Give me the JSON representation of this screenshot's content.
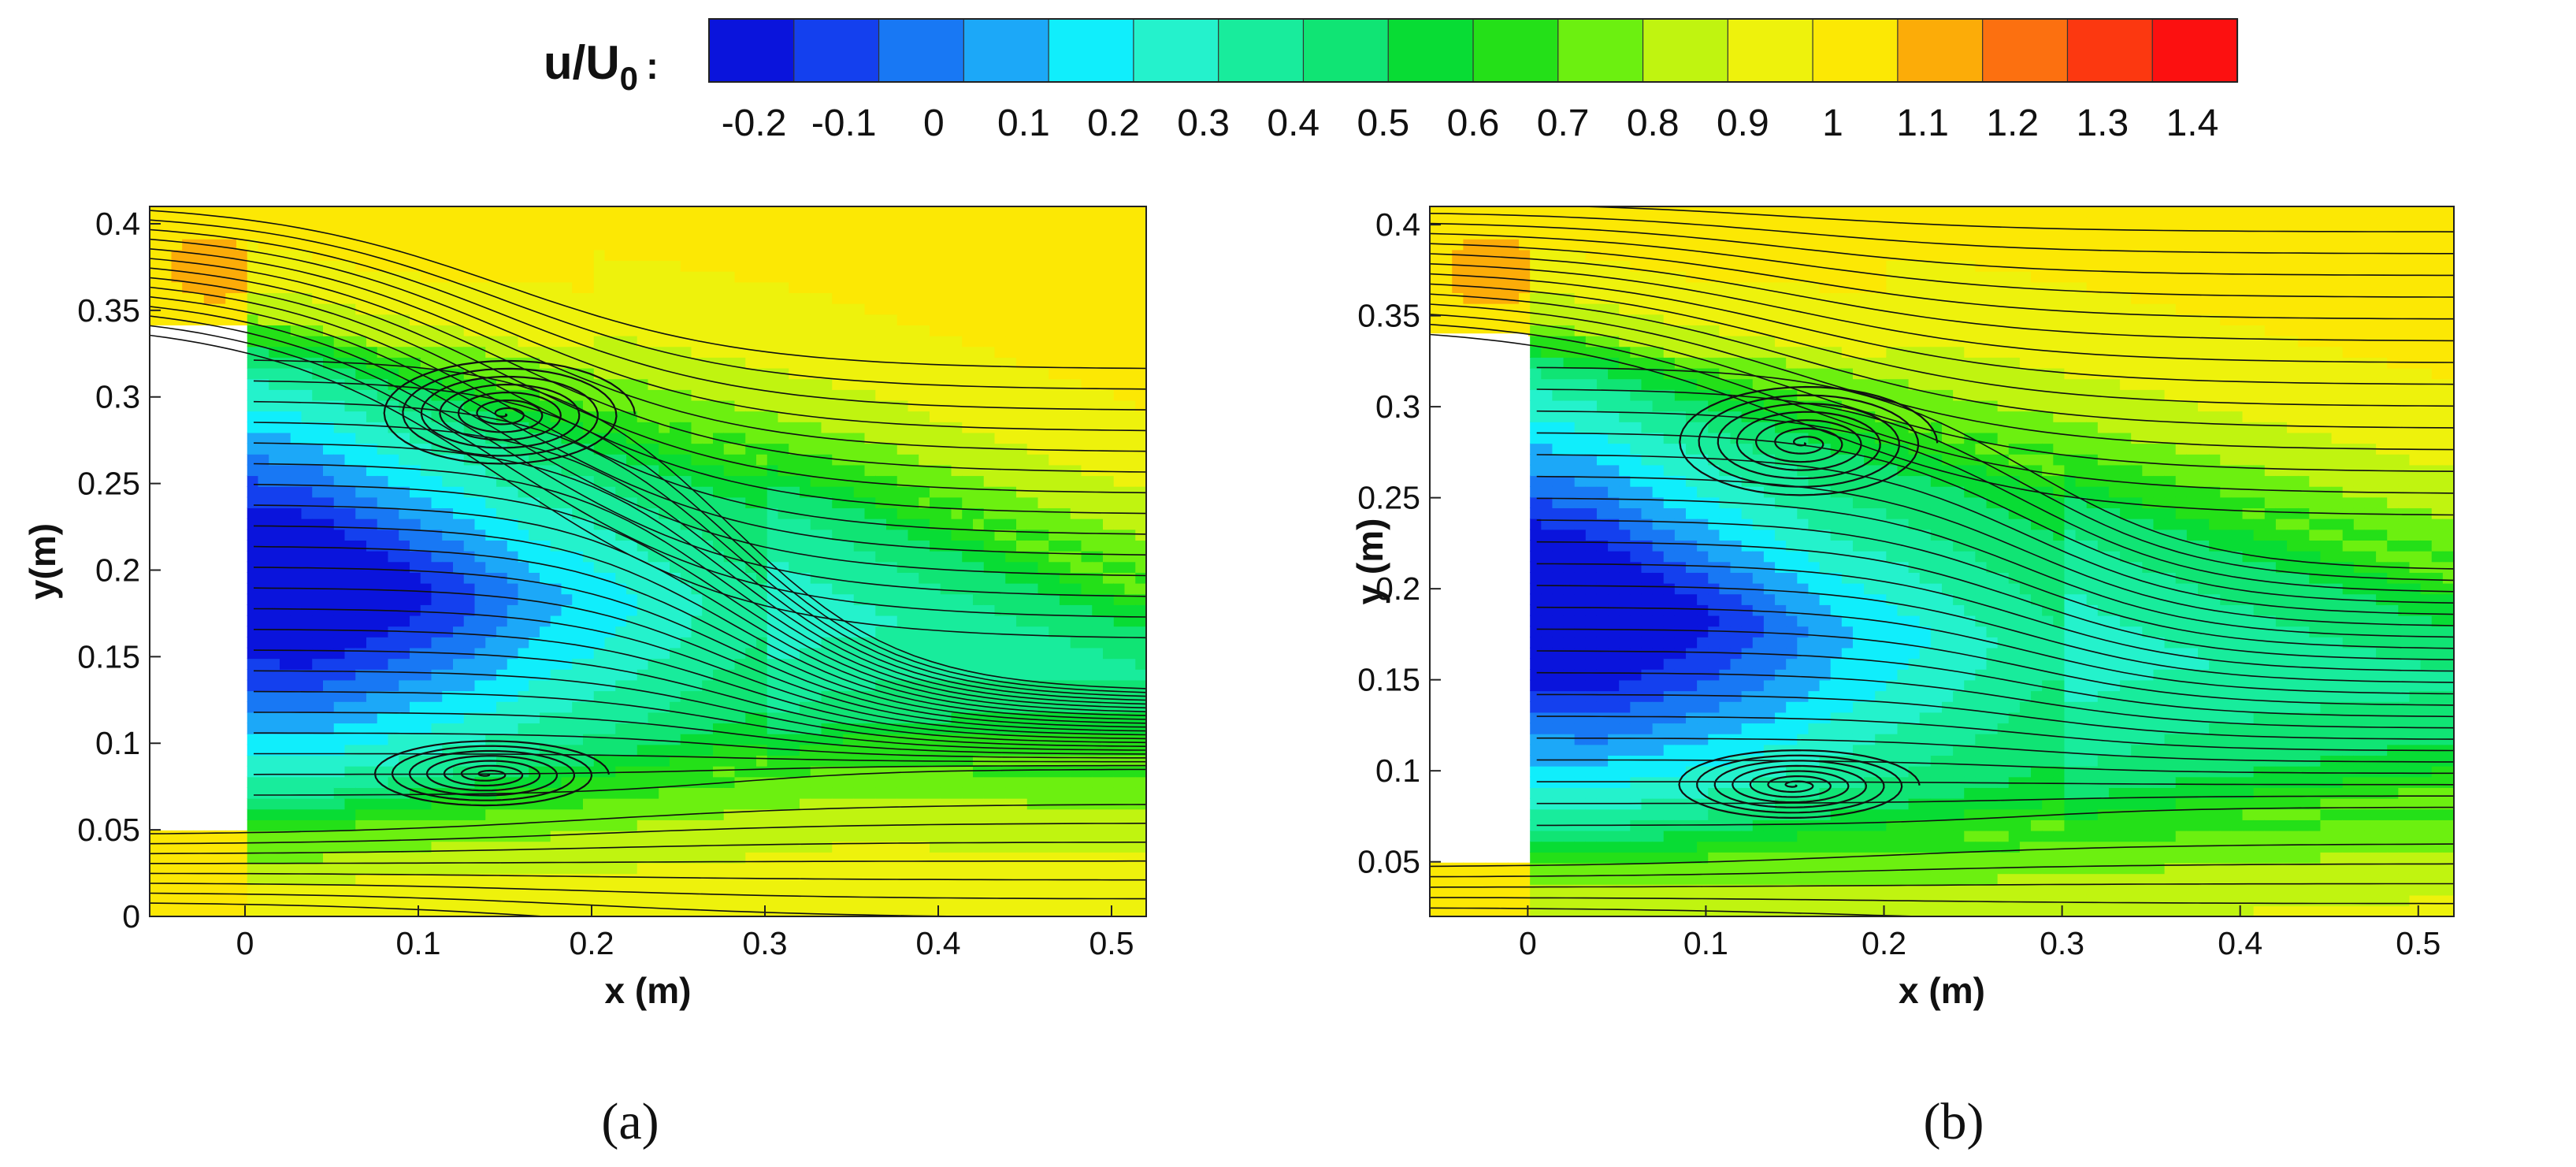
{
  "colorbar": {
    "title": "u/U",
    "title_sub": "0",
    "title_suffix": ":",
    "levels": [
      -0.25,
      -0.15,
      -0.05,
      0.05,
      0.15,
      0.25,
      0.35,
      0.45,
      0.55,
      0.65,
      0.75,
      0.85,
      0.95,
      1.05,
      1.15,
      1.25,
      1.35,
      1.45
    ],
    "colors": [
      "#0a14dc",
      "#1440ee",
      "#1878f4",
      "#1ca8f8",
      "#10eefc",
      "#24f2cc",
      "#18ec9c",
      "#10e474",
      "#08dc34",
      "#24e018",
      "#6cf010",
      "#c0f410",
      "#eef20c",
      "#fce804",
      "#fcac08",
      "#fc7010",
      "#fc3810",
      "#fc1010"
    ],
    "tick_values": [
      -0.2,
      -0.1,
      0,
      0.1,
      0.2,
      0.3,
      0.4,
      0.5,
      0.6,
      0.7,
      0.8,
      0.9,
      1,
      1.1,
      1.2,
      1.3,
      1.4
    ],
    "tick_labels": [
      "-0.2",
      "-0.1",
      "0",
      "0.1",
      "0.2",
      "0.3",
      "0.4",
      "0.5",
      "0.6",
      "0.7",
      "0.8",
      "0.9",
      "1",
      "1.1",
      "1.2",
      "1.3",
      "1.4"
    ]
  },
  "panels": [
    {
      "id": "a",
      "label": "(a)",
      "xlabel": "x (m)",
      "ylabel": "y(m)"
    },
    {
      "id": "b",
      "label": "(b)",
      "xlabel": "x (m)",
      "ylabel": "y (m)"
    }
  ],
  "chart_data": [
    {
      "type": "contour",
      "title": "",
      "panel_label": "(a)",
      "xlabel": "x (m)",
      "ylabel": "y(m)",
      "xlim": [
        -0.055,
        0.52
      ],
      "ylim": [
        0,
        0.41
      ],
      "xticks": [
        0,
        0.1,
        0.2,
        0.3,
        0.4,
        0.5
      ],
      "xtick_labels": [
        "0",
        "0.1",
        "0.2",
        "0.3",
        "0.4",
        "0.5"
      ],
      "yticks": [
        0,
        0.05,
        0.1,
        0.15,
        0.2,
        0.25,
        0.3,
        0.35,
        0.4
      ],
      "ytick_labels": [
        "0",
        "0.05",
        "0.1",
        "0.15",
        "0.2",
        "0.25",
        "0.3",
        "0.35",
        "0.4"
      ],
      "obstacle": {
        "x": [
          -0.055,
          0
        ],
        "y": [
          0.05,
          0.34
        ]
      },
      "vortex_upper": {
        "x": 0.15,
        "y": 0.29
      },
      "vortex_lower": {
        "x": 0.14,
        "y": 0.082
      },
      "wake_upper_y_end": 0.13,
      "wake_lower_y_end": 0.085,
      "freestream_u_over_U0": 1.0,
      "min_u_over_U0": -0.2,
      "max_u_over_U0": 1.2,
      "streamlines": true
    },
    {
      "type": "contour",
      "title": "",
      "panel_label": "(b)",
      "xlabel": "x (m)",
      "ylabel": "y (m)",
      "xlim": [
        -0.055,
        0.52
      ],
      "ylim": [
        0.02,
        0.41
      ],
      "xticks": [
        0,
        0.1,
        0.2,
        0.3,
        0.4,
        0.5
      ],
      "xtick_labels": [
        "0",
        "0.1",
        "0.2",
        "0.3",
        "0.4",
        "0.5"
      ],
      "yticks": [
        0.05,
        0.1,
        0.15,
        0.2,
        0.25,
        0.3,
        0.35,
        0.4
      ],
      "ytick_labels": [
        "0.05",
        "0.1",
        "0.15",
        "0.2",
        "0.25",
        "0.3",
        "0.35",
        "0.4"
      ],
      "obstacle": {
        "x": [
          -0.055,
          0
        ],
        "y": [
          0.05,
          0.34
        ]
      },
      "vortex_upper": {
        "x": 0.155,
        "y": 0.28
      },
      "vortex_lower": {
        "x": 0.15,
        "y": 0.092
      },
      "wake_upper_y_end": 0.21,
      "wake_lower_y_end": 0.08,
      "freestream_u_over_U0": 1.0,
      "min_u_over_U0": -0.2,
      "max_u_over_U0": 1.2,
      "streamlines": true
    }
  ]
}
